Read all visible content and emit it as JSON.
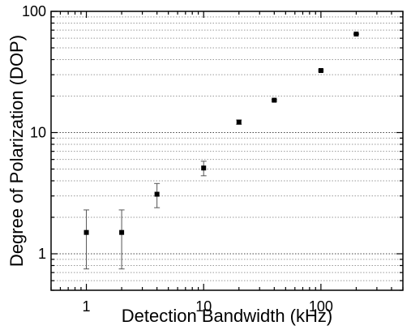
{
  "chart_data": {
    "type": "scatter",
    "xlabel": "Detection Bandwidth (kHz)",
    "ylabel": "Degree of Polarization (DOP)",
    "xscale": "log",
    "yscale": "log",
    "xlim": [
      0.5,
      500
    ],
    "ylim": [
      0.5,
      100
    ],
    "x_tick_labels": [
      "1",
      "10",
      "100"
    ],
    "x_tick_values": [
      1,
      10,
      100
    ],
    "y_tick_labels": [
      "1",
      "10",
      "100"
    ],
    "y_tick_values": [
      1,
      10,
      100
    ],
    "grid": "horizontal dotted at minor decades",
    "marker": "square",
    "marker_color": "#000000",
    "points": [
      {
        "x": 1,
        "y": 1.5,
        "yerr_low": 0.75,
        "yerr_high": 2.3
      },
      {
        "x": 2,
        "y": 1.5,
        "yerr_low": 0.75,
        "yerr_high": 2.3
      },
      {
        "x": 4,
        "y": 3.1,
        "yerr_low": 2.4,
        "yerr_high": 3.8
      },
      {
        "x": 10,
        "y": 5.1,
        "yerr_low": 4.4,
        "yerr_high": 5.8
      },
      {
        "x": 20,
        "y": 12.2,
        "yerr_low": 11.7,
        "yerr_high": 12.7
      },
      {
        "x": 40,
        "y": 18.5,
        "yerr_low": 18.2,
        "yerr_high": 18.8
      },
      {
        "x": 100,
        "y": 32.5,
        "yerr_low": 32.0,
        "yerr_high": 33.0
      },
      {
        "x": 200,
        "y": 65.0,
        "yerr_low": 64.5,
        "yerr_high": 65.5
      }
    ]
  }
}
